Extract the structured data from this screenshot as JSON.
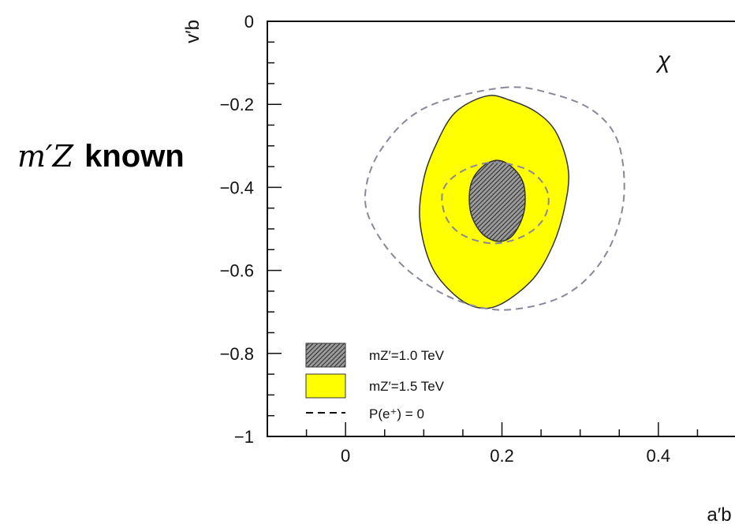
{
  "chart_data": {
    "type": "contour",
    "title": "",
    "side_title": {
      "symbol": "m′Z",
      "text": "known"
    },
    "model_label": "χ",
    "xlabel": "a′b",
    "ylabel": "v′b",
    "xlim": [
      -0.1,
      0.5
    ],
    "ylim": [
      -1.0,
      0.0
    ],
    "xticks": [
      {
        "value": 0,
        "label": "0"
      },
      {
        "value": 0.2,
        "label": "0.2"
      },
      {
        "value": 0.4,
        "label": "0.4"
      }
    ],
    "yticks": [
      {
        "value": 0,
        "label": "0"
      },
      {
        "value": -0.2,
        "label": "−0.2"
      },
      {
        "value": -0.4,
        "label": "−0.4"
      },
      {
        "value": -0.6,
        "label": "−0.6"
      },
      {
        "value": -0.8,
        "label": "−0.8"
      },
      {
        "value": -1,
        "label": "−1"
      }
    ],
    "grid": false,
    "legend_position": "bottom-left",
    "legend": [
      {
        "id": "hatched",
        "label": "mZ′=1.0 TeV"
      },
      {
        "id": "yellow",
        "label": "mZ′=1.5 TeV"
      },
      {
        "id": "dashed",
        "label": "P(e⁺) = 0"
      }
    ],
    "series": [
      {
        "legend_id": "yellow",
        "style": "filled",
        "color": "#ffff00",
        "edge": "#333333",
        "x": [
          0.18,
          0.21,
          0.245,
          0.27,
          0.285,
          0.28,
          0.265,
          0.24,
          0.2,
          0.17,
          0.14,
          0.11,
          0.095,
          0.1,
          0.115,
          0.14,
          0.18
        ],
        "y": [
          -0.18,
          -0.19,
          -0.22,
          -0.27,
          -0.36,
          -0.45,
          -0.54,
          -0.62,
          -0.68,
          -0.69,
          -0.66,
          -0.59,
          -0.48,
          -0.38,
          -0.3,
          -0.22,
          -0.18
        ]
      },
      {
        "legend_id": "hatched",
        "style": "hatched",
        "color": "#6b6b6b",
        "edge": "#333333",
        "x": [
          0.195,
          0.215,
          0.228,
          0.228,
          0.214,
          0.195,
          0.174,
          0.16,
          0.16,
          0.174,
          0.195
        ],
        "y": [
          -0.335,
          -0.355,
          -0.395,
          -0.46,
          -0.515,
          -0.53,
          -0.51,
          -0.46,
          -0.395,
          -0.352,
          -0.335
        ]
      },
      {
        "legend_id": "dashed",
        "style": "dashed",
        "color": "#888899",
        "x": [
          0.2,
          0.265,
          0.32,
          0.35,
          0.355,
          0.33,
          0.28,
          0.205,
          0.14,
          0.08,
          0.04,
          0.025,
          0.045,
          0.1,
          0.2
        ],
        "y": [
          -0.16,
          -0.175,
          -0.22,
          -0.3,
          -0.44,
          -0.57,
          -0.66,
          -0.695,
          -0.67,
          -0.6,
          -0.51,
          -0.42,
          -0.31,
          -0.21,
          -0.16
        ]
      },
      {
        "legend_id": "dashed",
        "style": "dashed",
        "color": "#888899",
        "x": [
          0.19,
          0.235,
          0.258,
          0.255,
          0.23,
          0.19,
          0.15,
          0.128,
          0.125,
          0.15,
          0.19
        ],
        "y": [
          -0.34,
          -0.36,
          -0.41,
          -0.47,
          -0.515,
          -0.535,
          -0.515,
          -0.47,
          -0.405,
          -0.36,
          -0.34
        ]
      }
    ]
  }
}
